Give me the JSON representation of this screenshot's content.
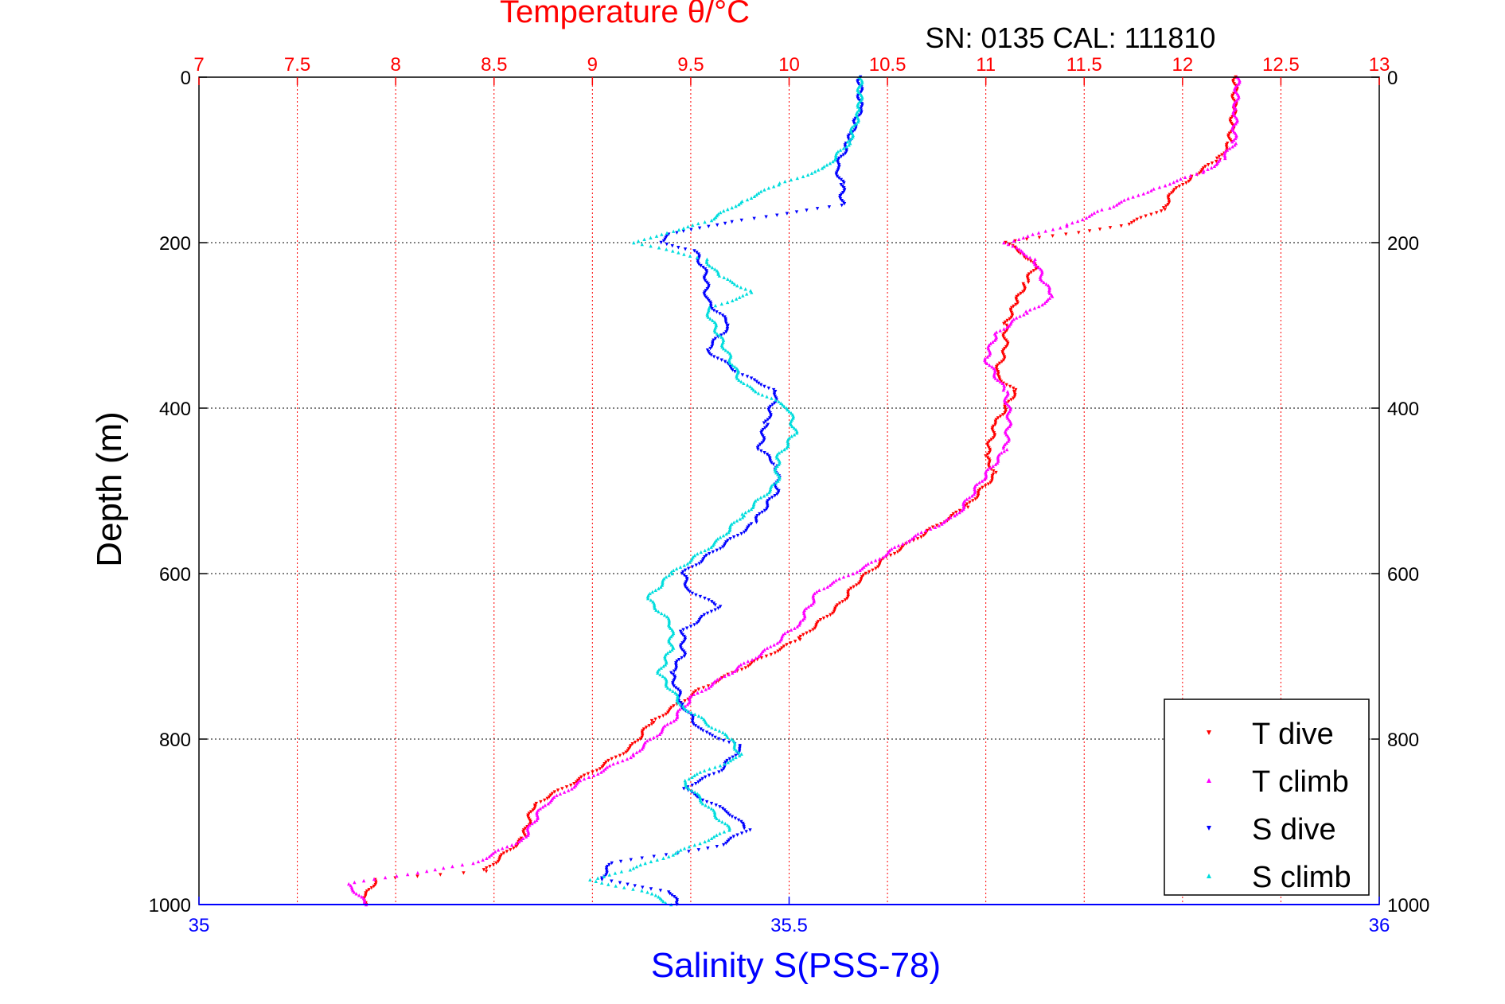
{
  "figure": {
    "top_title": "Temperature θ/°C",
    "annotation": "SN: 0135  CAL: 111810",
    "bottom_xlabel": "Salinity S(PSS-78)",
    "ylabel": "Depth (m)"
  },
  "chart_data": {
    "type": "scatter",
    "title": "Temperature θ/°C",
    "annotation": "SN: 0135  CAL: 111810",
    "ylabel": "Depth (m)",
    "ylim": [
      0,
      1000
    ],
    "y_reversed": true,
    "y_ticks": [
      0,
      200,
      400,
      600,
      800,
      1000
    ],
    "top_axis": {
      "label": "Temperature θ/°C",
      "range": [
        7,
        13
      ],
      "ticks": [
        7,
        7.5,
        8,
        8.5,
        9,
        9.5,
        10,
        10.5,
        11,
        11.5,
        12,
        12.5,
        13
      ],
      "tick_labels": [
        "7",
        "7.5",
        "8",
        "8.5",
        "9",
        "9.5",
        "10",
        "10.5",
        "11",
        "11.5",
        "12",
        "12.5",
        "13"
      ],
      "color": "#ff0000"
    },
    "bottom_axis": {
      "label": "Salinity S(PSS-78)",
      "range": [
        35,
        36
      ],
      "ticks": [
        35,
        35.5,
        36
      ],
      "tick_labels": [
        "35",
        "35.5",
        "36"
      ],
      "color": "#0000ff"
    },
    "grid": true,
    "legend_position": "bottom-right",
    "series": [
      {
        "name": "T dive",
        "axis": "temperature",
        "color": "#ff0000",
        "marker": "triangle-down",
        "points": [
          [
            12.27,
            0
          ],
          [
            12.26,
            40
          ],
          [
            12.24,
            80
          ],
          [
            12.18,
            100
          ],
          [
            12.05,
            120
          ],
          [
            11.95,
            140
          ],
          [
            11.9,
            160
          ],
          [
            11.7,
            180
          ],
          [
            11.4,
            190
          ],
          [
            11.1,
            200
          ],
          [
            11.2,
            215
          ],
          [
            11.25,
            230
          ],
          [
            11.2,
            250
          ],
          [
            11.15,
            275
          ],
          [
            11.1,
            300
          ],
          [
            11.1,
            330
          ],
          [
            11.05,
            360
          ],
          [
            11.15,
            380
          ],
          [
            11.05,
            420
          ],
          [
            11.0,
            460
          ],
          [
            11.05,
            480
          ],
          [
            10.9,
            520
          ],
          [
            10.7,
            550
          ],
          [
            10.5,
            580
          ],
          [
            10.35,
            610
          ],
          [
            10.25,
            640
          ],
          [
            10.05,
            680
          ],
          [
            9.8,
            710
          ],
          [
            9.55,
            740
          ],
          [
            9.3,
            780
          ],
          [
            9.2,
            810
          ],
          [
            9.0,
            840
          ],
          [
            8.7,
            880
          ],
          [
            8.65,
            920
          ],
          [
            8.45,
            960
          ],
          [
            7.9,
            970
          ],
          [
            7.85,
            990
          ],
          [
            7.85,
            1000
          ]
        ]
      },
      {
        "name": "T climb",
        "axis": "temperature",
        "color": "#ff00ff",
        "marker": "triangle-up",
        "points": [
          [
            12.28,
            0
          ],
          [
            12.27,
            40
          ],
          [
            12.26,
            80
          ],
          [
            12.2,
            100
          ],
          [
            12.1,
            115
          ],
          [
            11.85,
            135
          ],
          [
            11.6,
            160
          ],
          [
            11.4,
            180
          ],
          [
            11.1,
            200
          ],
          [
            11.25,
            220
          ],
          [
            11.3,
            250
          ],
          [
            11.35,
            265
          ],
          [
            11.2,
            285
          ],
          [
            11.05,
            310
          ],
          [
            11.0,
            340
          ],
          [
            11.1,
            380
          ],
          [
            11.12,
            410
          ],
          [
            11.1,
            450
          ],
          [
            11.0,
            480
          ],
          [
            10.85,
            530
          ],
          [
            10.6,
            560
          ],
          [
            10.4,
            590
          ],
          [
            10.15,
            620
          ],
          [
            10.05,
            660
          ],
          [
            9.9,
            690
          ],
          [
            9.7,
            720
          ],
          [
            9.5,
            750
          ],
          [
            9.4,
            780
          ],
          [
            9.2,
            820
          ],
          [
            8.95,
            850
          ],
          [
            8.75,
            880
          ],
          [
            8.65,
            920
          ],
          [
            8.4,
            950
          ],
          [
            7.75,
            975
          ],
          [
            7.8,
            985
          ],
          [
            7.85,
            1000
          ]
        ]
      },
      {
        "name": "S dive",
        "axis": "salinity",
        "color": "#0000ff",
        "marker": "triangle-down",
        "points": [
          [
            35.56,
            0
          ],
          [
            35.56,
            40
          ],
          [
            35.55,
            80
          ],
          [
            35.54,
            110
          ],
          [
            35.545,
            130
          ],
          [
            35.545,
            155
          ],
          [
            35.45,
            175
          ],
          [
            35.4,
            190
          ],
          [
            35.39,
            200
          ],
          [
            35.42,
            210
          ],
          [
            35.43,
            240
          ],
          [
            35.43,
            270
          ],
          [
            35.45,
            300
          ],
          [
            35.43,
            330
          ],
          [
            35.46,
            360
          ],
          [
            35.49,
            380
          ],
          [
            35.48,
            420
          ],
          [
            35.475,
            450
          ],
          [
            35.49,
            470
          ],
          [
            35.49,
            500
          ],
          [
            35.47,
            540
          ],
          [
            35.44,
            570
          ],
          [
            35.41,
            600
          ],
          [
            35.415,
            620
          ],
          [
            35.44,
            640
          ],
          [
            35.41,
            670
          ],
          [
            35.41,
            700
          ],
          [
            35.4,
            720
          ],
          [
            35.41,
            760
          ],
          [
            35.425,
            790
          ],
          [
            35.46,
            810
          ],
          [
            35.44,
            840
          ],
          [
            35.41,
            860
          ],
          [
            35.45,
            890
          ],
          [
            35.465,
            910
          ],
          [
            35.44,
            930
          ],
          [
            35.35,
            950
          ],
          [
            35.34,
            970
          ],
          [
            35.4,
            985
          ],
          [
            35.405,
            1000
          ]
        ]
      },
      {
        "name": "S climb",
        "axis": "salinity",
        "color": "#00dddd",
        "marker": "triangle-up",
        "points": [
          [
            35.56,
            0
          ],
          [
            35.56,
            40
          ],
          [
            35.55,
            80
          ],
          [
            35.53,
            110
          ],
          [
            35.49,
            130
          ],
          [
            35.46,
            150
          ],
          [
            35.43,
            175
          ],
          [
            35.39,
            190
          ],
          [
            35.37,
            200
          ],
          [
            35.43,
            220
          ],
          [
            35.44,
            240
          ],
          [
            35.47,
            260
          ],
          [
            35.43,
            280
          ],
          [
            35.44,
            310
          ],
          [
            35.45,
            340
          ],
          [
            35.46,
            370
          ],
          [
            35.5,
            400
          ],
          [
            35.505,
            430
          ],
          [
            35.49,
            460
          ],
          [
            35.49,
            490
          ],
          [
            35.46,
            530
          ],
          [
            35.44,
            560
          ],
          [
            35.4,
            600
          ],
          [
            35.38,
            630
          ],
          [
            35.4,
            660
          ],
          [
            35.4,
            690
          ],
          [
            35.39,
            720
          ],
          [
            35.41,
            760
          ],
          [
            35.45,
            800
          ],
          [
            35.46,
            820
          ],
          [
            35.41,
            850
          ],
          [
            35.43,
            880
          ],
          [
            35.45,
            910
          ],
          [
            35.4,
            940
          ],
          [
            35.36,
            960
          ],
          [
            35.33,
            970
          ],
          [
            35.38,
            985
          ],
          [
            35.4,
            1000
          ]
        ]
      }
    ]
  }
}
